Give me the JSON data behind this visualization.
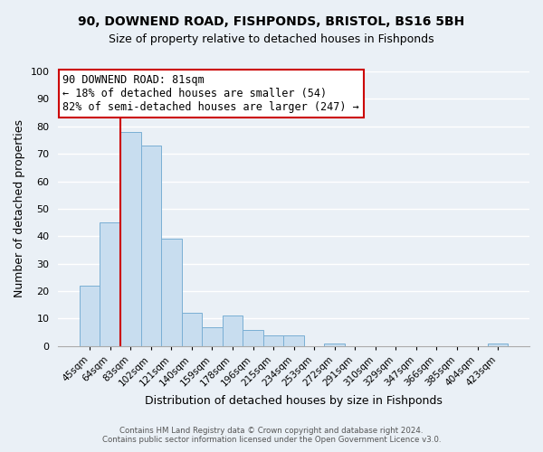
{
  "title": "90, DOWNEND ROAD, FISHPONDS, BRISTOL, BS16 5BH",
  "subtitle": "Size of property relative to detached houses in Fishponds",
  "xlabel": "Distribution of detached houses by size in Fishponds",
  "ylabel": "Number of detached properties",
  "bar_color": "#c8ddef",
  "bar_edge_color": "#7aafd4",
  "background_color": "#eaf0f6",
  "grid_color": "#ffffff",
  "categories": [
    "45sqm",
    "64sqm",
    "83sqm",
    "102sqm",
    "121sqm",
    "140sqm",
    "159sqm",
    "178sqm",
    "196sqm",
    "215sqm",
    "234sqm",
    "253sqm",
    "272sqm",
    "291sqm",
    "310sqm",
    "329sqm",
    "347sqm",
    "366sqm",
    "385sqm",
    "404sqm",
    "423sqm"
  ],
  "values": [
    22,
    45,
    78,
    73,
    39,
    12,
    7,
    11,
    6,
    4,
    4,
    0,
    1,
    0,
    0,
    0,
    0,
    0,
    0,
    0,
    1
  ],
  "ylim": [
    0,
    100
  ],
  "yticks": [
    0,
    10,
    20,
    30,
    40,
    50,
    60,
    70,
    80,
    90,
    100
  ],
  "property_line_bar_index": 2,
  "property_line_color": "#cc0000",
  "annotation_line1": "90 DOWNEND ROAD: 81sqm",
  "annotation_line2": "← 18% of detached houses are smaller (54)",
  "annotation_line3": "82% of semi-detached houses are larger (247) →",
  "footer_line1": "Contains HM Land Registry data © Crown copyright and database right 2024.",
  "footer_line2": "Contains public sector information licensed under the Open Government Licence v3.0."
}
